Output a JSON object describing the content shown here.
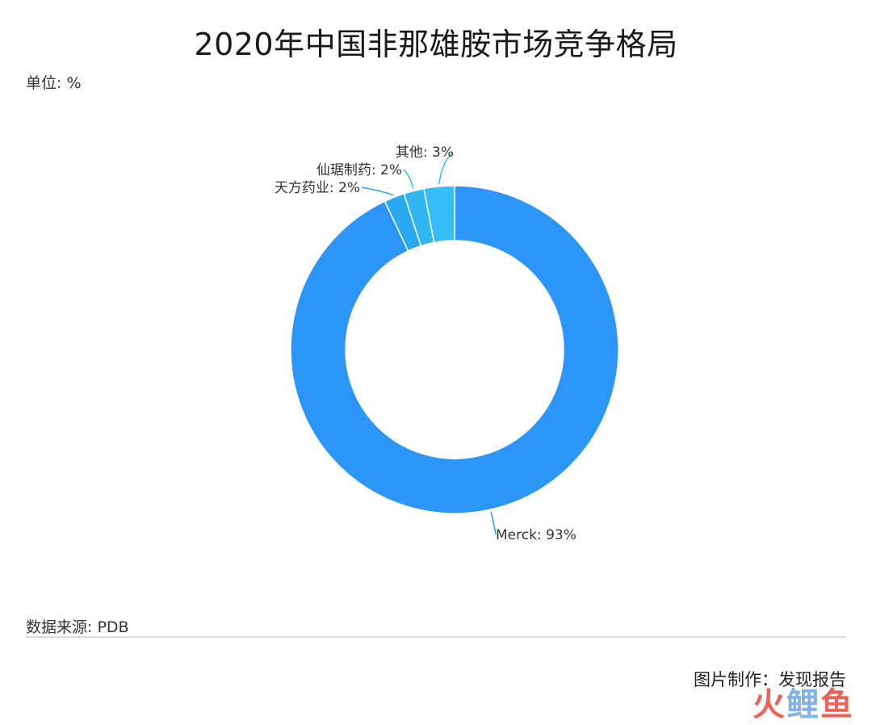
{
  "title": "2020年中国非那雄胺市场竞争格局",
  "unit_label": "单位: %",
  "source_label": "数据来源: PDB",
  "credit_label": "图片制作：发现报告",
  "watermark": {
    "part1": "火",
    "part2": "鲤",
    "part3": "鱼"
  },
  "chart_data": {
    "type": "pie",
    "donut": true,
    "title": "2020年中国非那雄胺市场竞争格局",
    "unit": "%",
    "legend": "none",
    "slices": [
      {
        "label": "Merck",
        "value": 93,
        "display": "Merck: 93%",
        "color": "#2b96f8"
      },
      {
        "label": "天方药业",
        "value": 2,
        "display": "天方药业: 2%",
        "color": "#29a9f2"
      },
      {
        "label": "仙琚制药",
        "value": 2,
        "display": "仙琚制药: 2%",
        "color": "#30b6f0"
      },
      {
        "label": "其他",
        "value": 3,
        "display": "其他: 3%",
        "color": "#34bdf6"
      }
    ]
  }
}
